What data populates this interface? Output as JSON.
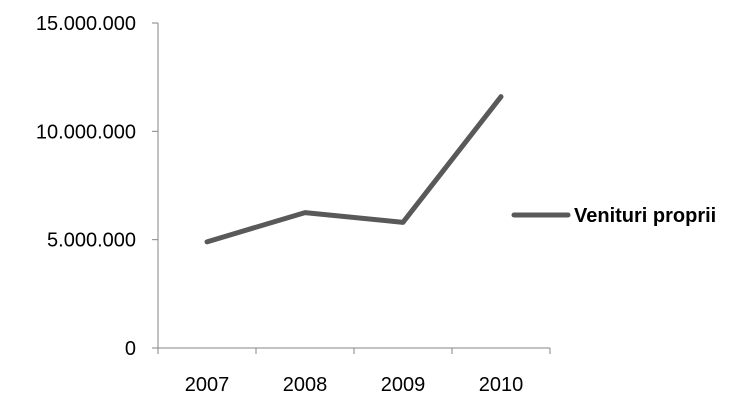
{
  "chart_data": {
    "type": "line",
    "categories": [
      "2007",
      "2008",
      "2009",
      "2010"
    ],
    "series": [
      {
        "name": "Venituri proprii",
        "values": [
          4900000,
          6250000,
          5800000,
          11600000
        ],
        "color": "#595959"
      }
    ],
    "ylim": [
      0,
      15000000
    ],
    "y_ticks": [
      0,
      5000000,
      10000000,
      15000000
    ],
    "y_tick_labels": [
      "0",
      "5.000.000",
      "10.000.000",
      "15.000.000"
    ],
    "grid": false,
    "legend_position": "right",
    "axis_color": "#868686"
  }
}
